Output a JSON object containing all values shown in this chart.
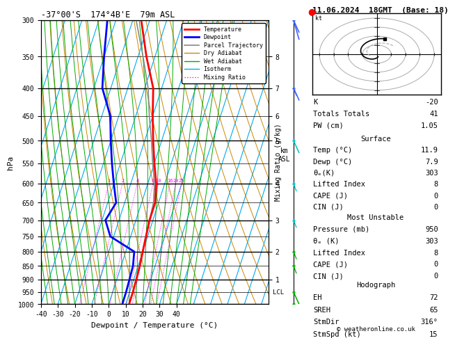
{
  "title_left": "-37°00'S  174°4B'E  79m ASL",
  "title_right": "11.06.2024  18GMT  (Base: 18)",
  "xlabel": "Dewpoint / Temperature (°C)",
  "ylabel_left": "hPa",
  "background_color": "#ffffff",
  "plot_bg": "#ffffff",
  "temp_profile": {
    "pressure": [
      1000,
      950,
      900,
      850,
      800,
      750,
      700,
      650,
      600,
      550,
      500,
      450,
      400,
      350,
      300
    ],
    "temperature": [
      12.0,
      11.9,
      11.5,
      11.0,
      10.0,
      9.0,
      8.0,
      8.0,
      5.0,
      0.0,
      -5.0,
      -10.0,
      -15.0,
      -25.0,
      -35.0
    ]
  },
  "dewpoint_profile": {
    "pressure": [
      1000,
      950,
      900,
      850,
      800,
      750,
      700,
      650,
      600,
      550,
      500,
      450,
      400,
      350,
      300
    ],
    "dewpoint": [
      8.0,
      7.9,
      7.5,
      7.0,
      5.0,
      -12.0,
      -18.0,
      -15.0,
      -20.0,
      -25.0,
      -30.0,
      -35.0,
      -45.0,
      -50.0,
      -55.0
    ]
  },
  "parcel_trajectory": {
    "pressure": [
      1000,
      950,
      900,
      850,
      800,
      750,
      700,
      650,
      600,
      550,
      500,
      450,
      400,
      350,
      300
    ],
    "temperature": [
      12.0,
      11.9,
      11.5,
      11.0,
      10.0,
      9.0,
      8.0,
      7.0,
      4.0,
      -1.0,
      -6.0,
      -12.0,
      -18.0,
      -27.0,
      -38.0
    ]
  },
  "temp_color": "#ff0000",
  "dewpoint_color": "#0000ff",
  "parcel_color": "#888888",
  "dry_adiabat_color": "#cc8800",
  "wet_adiabat_color": "#00aa00",
  "isotherm_color": "#00aaee",
  "mixing_ratio_color": "#ff00ff",
  "stats_K": -20,
  "stats_TT": 41,
  "stats_PW": 1.05,
  "surface_temp": 11.9,
  "surface_dewp": 7.9,
  "surface_theta": 303,
  "surface_LI": 8,
  "surface_CAPE": 0,
  "surface_CIN": 0,
  "mu_pressure": 950,
  "mu_theta": 303,
  "mu_LI": 8,
  "mu_CAPE": 0,
  "mu_CIN": 0,
  "hodo_EH": 72,
  "hodo_SREH": 65,
  "hodo_StmDir": "316°",
  "hodo_StmSpd": 15,
  "copyright": "© weatheronline.co.uk",
  "mixing_ratio_values": [
    1,
    2,
    4,
    8,
    10,
    16,
    20,
    25
  ],
  "km_pressures": [
    900,
    800,
    700,
    600,
    500,
    450,
    400,
    350
  ],
  "km_labels": [
    "1",
    "2",
    "3",
    "4",
    "5",
    "6",
    "7",
    "8"
  ]
}
